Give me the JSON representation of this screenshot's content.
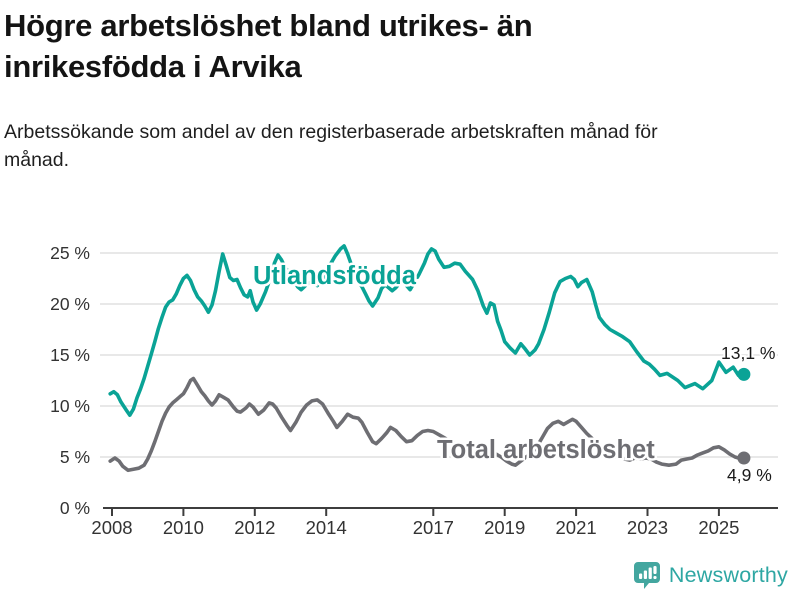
{
  "header": {
    "title": "Högre arbetslöshet bland utrikes- än inrikesfödda i Arvika",
    "subtitle": "Arbetssökande som andel av den registerbaserade arbetskraften månad för månad."
  },
  "footer": {
    "brand": "Newsworthy",
    "logo_icon": "speech-bubble-bar-chart-icon"
  },
  "colors": {
    "utlandsfodda": "#0aa396",
    "total": "#6e6e73",
    "gridline": "#d9d9d9",
    "axis": "#3d3d3d",
    "tick_label": "#333333",
    "annotation": "#1a1a1a",
    "brand_teal": "#2ea7a3",
    "brand_icon": "#43a69f"
  },
  "chart_data": {
    "type": "line",
    "title": "",
    "xlabel": "",
    "ylabel": "",
    "grid": true,
    "legend_position": "inline-labels",
    "xlim": [
      2007.8,
      2025.9
    ],
    "ylim": [
      0,
      26.5
    ],
    "x_ticks": [
      "2008",
      "2010",
      "2012",
      "2014",
      "2017",
      "2019",
      "2021",
      "2023",
      "2025"
    ],
    "x_tick_values": [
      2008,
      2010,
      2012,
      2014,
      2017,
      2019,
      2021,
      2023,
      2025
    ],
    "y_ticks": [
      "0 %",
      "5 %",
      "10 %",
      "15 %",
      "20 %",
      "25 %"
    ],
    "y_tick_values": [
      0,
      5,
      10,
      15,
      20,
      25
    ],
    "series": [
      {
        "name": "Utlandsfödda",
        "color": "#0aa396",
        "end_label": "13,1 %",
        "end_value": 13.1,
        "points": [
          [
            2007.95,
            11.2
          ],
          [
            2008.05,
            11.4
          ],
          [
            2008.15,
            11.1
          ],
          [
            2008.25,
            10.4
          ],
          [
            2008.4,
            9.6
          ],
          [
            2008.5,
            9.1
          ],
          [
            2008.6,
            9.7
          ],
          [
            2008.7,
            10.8
          ],
          [
            2008.8,
            11.7
          ],
          [
            2008.9,
            12.7
          ],
          [
            2009.0,
            13.9
          ],
          [
            2009.1,
            15.1
          ],
          [
            2009.2,
            16.3
          ],
          [
            2009.3,
            17.6
          ],
          [
            2009.4,
            18.7
          ],
          [
            2009.5,
            19.7
          ],
          [
            2009.6,
            20.2
          ],
          [
            2009.7,
            20.4
          ],
          [
            2009.8,
            21.0
          ],
          [
            2009.9,
            21.8
          ],
          [
            2010.0,
            22.5
          ],
          [
            2010.1,
            22.8
          ],
          [
            2010.2,
            22.3
          ],
          [
            2010.3,
            21.4
          ],
          [
            2010.4,
            20.7
          ],
          [
            2010.5,
            20.3
          ],
          [
            2010.6,
            19.8
          ],
          [
            2010.7,
            19.2
          ],
          [
            2010.8,
            19.9
          ],
          [
            2010.9,
            21.3
          ],
          [
            2011.0,
            23.2
          ],
          [
            2011.1,
            24.9
          ],
          [
            2011.2,
            23.8
          ],
          [
            2011.3,
            22.6
          ],
          [
            2011.4,
            22.3
          ],
          [
            2011.5,
            22.4
          ],
          [
            2011.6,
            21.6
          ],
          [
            2011.7,
            20.9
          ],
          [
            2011.8,
            20.7
          ],
          [
            2011.87,
            21.3
          ],
          [
            2011.95,
            20.2
          ],
          [
            2012.05,
            19.4
          ],
          [
            2012.15,
            20.0
          ],
          [
            2012.3,
            21.2
          ],
          [
            2012.45,
            22.7
          ],
          [
            2012.55,
            24.0
          ],
          [
            2012.65,
            24.8
          ],
          [
            2012.75,
            24.3
          ],
          [
            2012.85,
            23.6
          ],
          [
            2012.95,
            23.1
          ],
          [
            2013.1,
            22.3
          ],
          [
            2013.2,
            21.7
          ],
          [
            2013.3,
            21.4
          ],
          [
            2013.45,
            21.9
          ],
          [
            2013.6,
            22.2
          ],
          [
            2013.75,
            21.8
          ],
          [
            2013.9,
            22.4
          ],
          [
            2014.0,
            23.1
          ],
          [
            2014.1,
            23.8
          ],
          [
            2014.25,
            24.7
          ],
          [
            2014.4,
            25.4
          ],
          [
            2014.5,
            25.7
          ],
          [
            2014.6,
            24.9
          ],
          [
            2014.7,
            23.9
          ],
          [
            2014.8,
            22.9
          ],
          [
            2014.9,
            22.2
          ],
          [
            2015.0,
            21.7
          ],
          [
            2015.1,
            21.0
          ],
          [
            2015.2,
            20.3
          ],
          [
            2015.3,
            19.8
          ],
          [
            2015.45,
            20.6
          ],
          [
            2015.55,
            21.5
          ],
          [
            2015.65,
            21.9
          ],
          [
            2015.75,
            21.6
          ],
          [
            2015.85,
            21.3
          ],
          [
            2015.95,
            21.6
          ],
          [
            2016.05,
            22.0
          ],
          [
            2016.15,
            22.3
          ],
          [
            2016.25,
            21.8
          ],
          [
            2016.35,
            21.4
          ],
          [
            2016.45,
            22.0
          ],
          [
            2016.6,
            22.9
          ],
          [
            2016.75,
            24.0
          ],
          [
            2016.85,
            24.9
          ],
          [
            2016.95,
            25.4
          ],
          [
            2017.05,
            25.2
          ],
          [
            2017.15,
            24.4
          ],
          [
            2017.3,
            23.6
          ],
          [
            2017.45,
            23.7
          ],
          [
            2017.6,
            24.0
          ],
          [
            2017.75,
            23.9
          ],
          [
            2017.9,
            23.2
          ],
          [
            2018.0,
            22.8
          ],
          [
            2018.1,
            22.4
          ],
          [
            2018.25,
            21.3
          ],
          [
            2018.4,
            19.8
          ],
          [
            2018.5,
            19.1
          ],
          [
            2018.6,
            20.1
          ],
          [
            2018.7,
            19.9
          ],
          [
            2018.8,
            18.3
          ],
          [
            2018.9,
            17.4
          ],
          [
            2019.0,
            16.3
          ],
          [
            2019.15,
            15.7
          ],
          [
            2019.3,
            15.2
          ],
          [
            2019.45,
            16.1
          ],
          [
            2019.55,
            15.7
          ],
          [
            2019.7,
            15.0
          ],
          [
            2019.85,
            15.5
          ],
          [
            2019.95,
            16.1
          ],
          [
            2020.1,
            17.5
          ],
          [
            2020.25,
            19.2
          ],
          [
            2020.4,
            21.1
          ],
          [
            2020.55,
            22.2
          ],
          [
            2020.7,
            22.5
          ],
          [
            2020.85,
            22.7
          ],
          [
            2020.95,
            22.4
          ],
          [
            2021.05,
            21.7
          ],
          [
            2021.15,
            22.1
          ],
          [
            2021.3,
            22.4
          ],
          [
            2021.45,
            21.2
          ],
          [
            2021.55,
            19.9
          ],
          [
            2021.65,
            18.7
          ],
          [
            2021.8,
            18.0
          ],
          [
            2021.95,
            17.5
          ],
          [
            2022.1,
            17.2
          ],
          [
            2022.3,
            16.8
          ],
          [
            2022.5,
            16.3
          ],
          [
            2022.7,
            15.3
          ],
          [
            2022.9,
            14.4
          ],
          [
            2023.05,
            14.1
          ],
          [
            2023.2,
            13.6
          ],
          [
            2023.35,
            13.0
          ],
          [
            2023.55,
            13.2
          ],
          [
            2023.85,
            12.5
          ],
          [
            2024.05,
            11.8
          ],
          [
            2024.33,
            12.2
          ],
          [
            2024.55,
            11.7
          ],
          [
            2024.8,
            12.5
          ],
          [
            2025.0,
            14.3
          ],
          [
            2025.2,
            13.3
          ],
          [
            2025.4,
            13.8
          ],
          [
            2025.55,
            13.0
          ],
          [
            2025.7,
            13.1
          ]
        ]
      },
      {
        "name": "Total arbetslöshet",
        "color": "#6e6e73",
        "end_label": "4,9 %",
        "end_value": 4.9,
        "points": [
          [
            2007.95,
            4.6
          ],
          [
            2008.08,
            4.9
          ],
          [
            2008.2,
            4.6
          ],
          [
            2008.3,
            4.1
          ],
          [
            2008.45,
            3.7
          ],
          [
            2008.6,
            3.8
          ],
          [
            2008.75,
            3.9
          ],
          [
            2008.9,
            4.2
          ],
          [
            2009.0,
            4.8
          ],
          [
            2009.1,
            5.6
          ],
          [
            2009.2,
            6.5
          ],
          [
            2009.3,
            7.5
          ],
          [
            2009.4,
            8.5
          ],
          [
            2009.5,
            9.3
          ],
          [
            2009.6,
            9.9
          ],
          [
            2009.7,
            10.3
          ],
          [
            2009.8,
            10.6
          ],
          [
            2009.9,
            10.9
          ],
          [
            2010.0,
            11.2
          ],
          [
            2010.1,
            11.8
          ],
          [
            2010.2,
            12.5
          ],
          [
            2010.28,
            12.7
          ],
          [
            2010.4,
            12.0
          ],
          [
            2010.5,
            11.4
          ],
          [
            2010.6,
            11.0
          ],
          [
            2010.7,
            10.5
          ],
          [
            2010.8,
            10.1
          ],
          [
            2010.9,
            10.5
          ],
          [
            2011.0,
            11.1
          ],
          [
            2011.1,
            10.9
          ],
          [
            2011.25,
            10.6
          ],
          [
            2011.4,
            9.9
          ],
          [
            2011.5,
            9.5
          ],
          [
            2011.6,
            9.4
          ],
          [
            2011.75,
            9.8
          ],
          [
            2011.85,
            10.2
          ],
          [
            2011.95,
            9.9
          ],
          [
            2012.1,
            9.2
          ],
          [
            2012.25,
            9.6
          ],
          [
            2012.4,
            10.3
          ],
          [
            2012.5,
            10.2
          ],
          [
            2012.6,
            9.8
          ],
          [
            2012.75,
            8.9
          ],
          [
            2012.9,
            8.1
          ],
          [
            2013.0,
            7.6
          ],
          [
            2013.15,
            8.4
          ],
          [
            2013.3,
            9.4
          ],
          [
            2013.45,
            10.1
          ],
          [
            2013.6,
            10.5
          ],
          [
            2013.75,
            10.6
          ],
          [
            2013.9,
            10.2
          ],
          [
            2014.05,
            9.3
          ],
          [
            2014.2,
            8.5
          ],
          [
            2014.3,
            7.9
          ],
          [
            2014.45,
            8.5
          ],
          [
            2014.6,
            9.2
          ],
          [
            2014.75,
            8.9
          ],
          [
            2014.9,
            8.8
          ],
          [
            2015.0,
            8.4
          ],
          [
            2015.15,
            7.4
          ],
          [
            2015.3,
            6.5
          ],
          [
            2015.4,
            6.3
          ],
          [
            2015.55,
            6.8
          ],
          [
            2015.7,
            7.4
          ],
          [
            2015.8,
            7.9
          ],
          [
            2015.95,
            7.6
          ],
          [
            2016.1,
            7.0
          ],
          [
            2016.25,
            6.5
          ],
          [
            2016.4,
            6.6
          ],
          [
            2016.55,
            7.1
          ],
          [
            2016.7,
            7.5
          ],
          [
            2016.85,
            7.6
          ],
          [
            2017.0,
            7.5
          ],
          [
            2017.15,
            7.2
          ],
          [
            2017.3,
            6.9
          ],
          [
            2017.5,
            6.5
          ],
          [
            2017.7,
            6.1
          ],
          [
            2017.9,
            5.8
          ],
          [
            2018.1,
            5.5
          ],
          [
            2018.3,
            5.2
          ],
          [
            2018.45,
            5.1
          ],
          [
            2018.6,
            5.4
          ],
          [
            2018.75,
            5.3
          ],
          [
            2018.9,
            5.0
          ],
          [
            2019.05,
            4.6
          ],
          [
            2019.2,
            4.3
          ],
          [
            2019.3,
            4.2
          ],
          [
            2019.45,
            4.6
          ],
          [
            2019.6,
            5.0
          ],
          [
            2019.75,
            5.4
          ],
          [
            2019.9,
            6.0
          ],
          [
            2020.05,
            6.9
          ],
          [
            2020.2,
            7.8
          ],
          [
            2020.35,
            8.3
          ],
          [
            2020.5,
            8.5
          ],
          [
            2020.65,
            8.2
          ],
          [
            2020.8,
            8.5
          ],
          [
            2020.9,
            8.7
          ],
          [
            2021.0,
            8.5
          ],
          [
            2021.15,
            7.9
          ],
          [
            2021.3,
            7.3
          ],
          [
            2021.45,
            6.8
          ],
          [
            2021.6,
            6.2
          ],
          [
            2021.75,
            5.7
          ],
          [
            2021.9,
            5.3
          ],
          [
            2022.05,
            5.0
          ],
          [
            2022.2,
            5.0
          ],
          [
            2022.35,
            4.8
          ],
          [
            2022.5,
            4.7
          ],
          [
            2022.65,
            4.9
          ],
          [
            2022.8,
            4.8
          ],
          [
            2022.95,
            4.9
          ],
          [
            2023.1,
            4.8
          ],
          [
            2023.25,
            4.5
          ],
          [
            2023.4,
            4.3
          ],
          [
            2023.6,
            4.2
          ],
          [
            2023.8,
            4.3
          ],
          [
            2023.95,
            4.7
          ],
          [
            2024.1,
            4.8
          ],
          [
            2024.25,
            4.9
          ],
          [
            2024.4,
            5.2
          ],
          [
            2024.55,
            5.4
          ],
          [
            2024.7,
            5.6
          ],
          [
            2024.85,
            5.9
          ],
          [
            2025.0,
            6.0
          ],
          [
            2025.15,
            5.7
          ],
          [
            2025.3,
            5.3
          ],
          [
            2025.45,
            5.0
          ],
          [
            2025.6,
            4.85
          ],
          [
            2025.7,
            4.9
          ]
        ]
      }
    ]
  }
}
